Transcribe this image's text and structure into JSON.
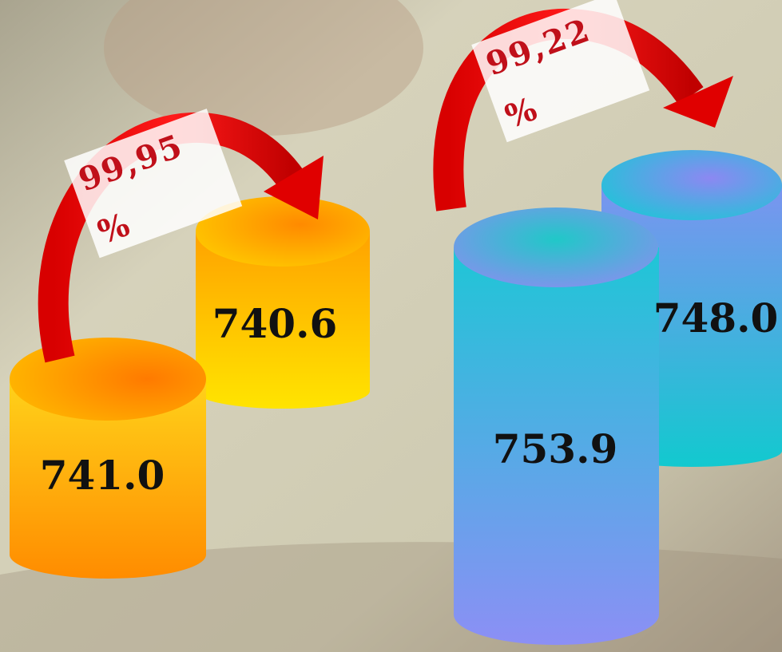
{
  "groups": [
    {
      "change": {
        "value": "99,95",
        "unit": "%"
      },
      "items": [
        "741.0",
        "740.6"
      ]
    },
    {
      "change": {
        "value": "99,22",
        "unit": "%"
      },
      "items": [
        "753.9",
        "748.0"
      ]
    }
  ]
}
